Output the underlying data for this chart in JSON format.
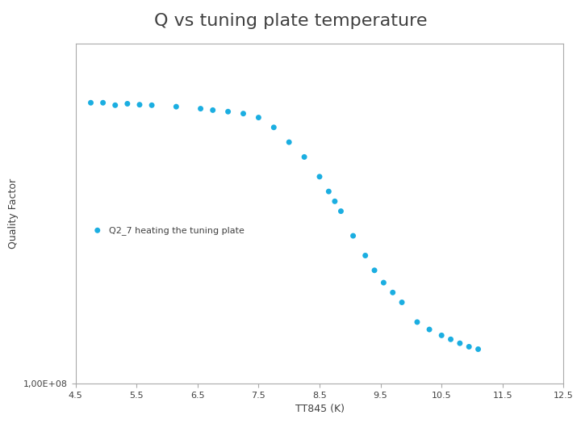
{
  "title": "Q vs tuning plate temperature",
  "xlabel": "TT845 (K)",
  "ylabel": "Quality Factor",
  "legend_label": "Q2_7 heating the tuning plate",
  "dot_color": "#1BAEE1",
  "background_color": "#FFFFFF",
  "xlim": [
    4.5,
    12.5
  ],
  "ylim": [
    100000000.0,
    7000000000.0
  ],
  "xticks": [
    4.5,
    5.5,
    6.5,
    7.5,
    8.5,
    9.5,
    10.5,
    11.5,
    12.5
  ],
  "x_data": [
    4.75,
    4.95,
    5.15,
    5.35,
    5.55,
    5.75,
    6.15,
    6.55,
    6.75,
    7.0,
    7.25,
    7.5,
    7.75,
    8.0,
    8.25,
    8.5,
    8.65,
    8.75,
    8.85,
    9.05,
    9.25,
    9.4,
    9.55,
    9.7,
    9.85,
    10.1,
    10.3,
    10.5,
    10.65,
    10.8,
    10.95,
    11.1
  ],
  "y_data": [
    5800000000.0,
    5800000000.0,
    5750000000.0,
    5780000000.0,
    5760000000.0,
    5750000000.0,
    5720000000.0,
    5680000000.0,
    5650000000.0,
    5620000000.0,
    5580000000.0,
    5500000000.0,
    5300000000.0,
    5000000000.0,
    4700000000.0,
    4300000000.0,
    4000000000.0,
    3800000000.0,
    3600000000.0,
    3100000000.0,
    2700000000.0,
    2400000000.0,
    2150000000.0,
    1950000000.0,
    1750000000.0,
    1350000000.0,
    1200000000.0,
    1080000000.0,
    1000000000.0,
    920000000.0,
    850000000.0,
    800000000.0
  ],
  "title_fontsize": 16,
  "axis_label_fontsize": 9,
  "tick_fontsize": 8,
  "dot_size": 25,
  "legend_fontsize": 8,
  "spine_color": "#AAAAAA",
  "text_color": "#404040"
}
